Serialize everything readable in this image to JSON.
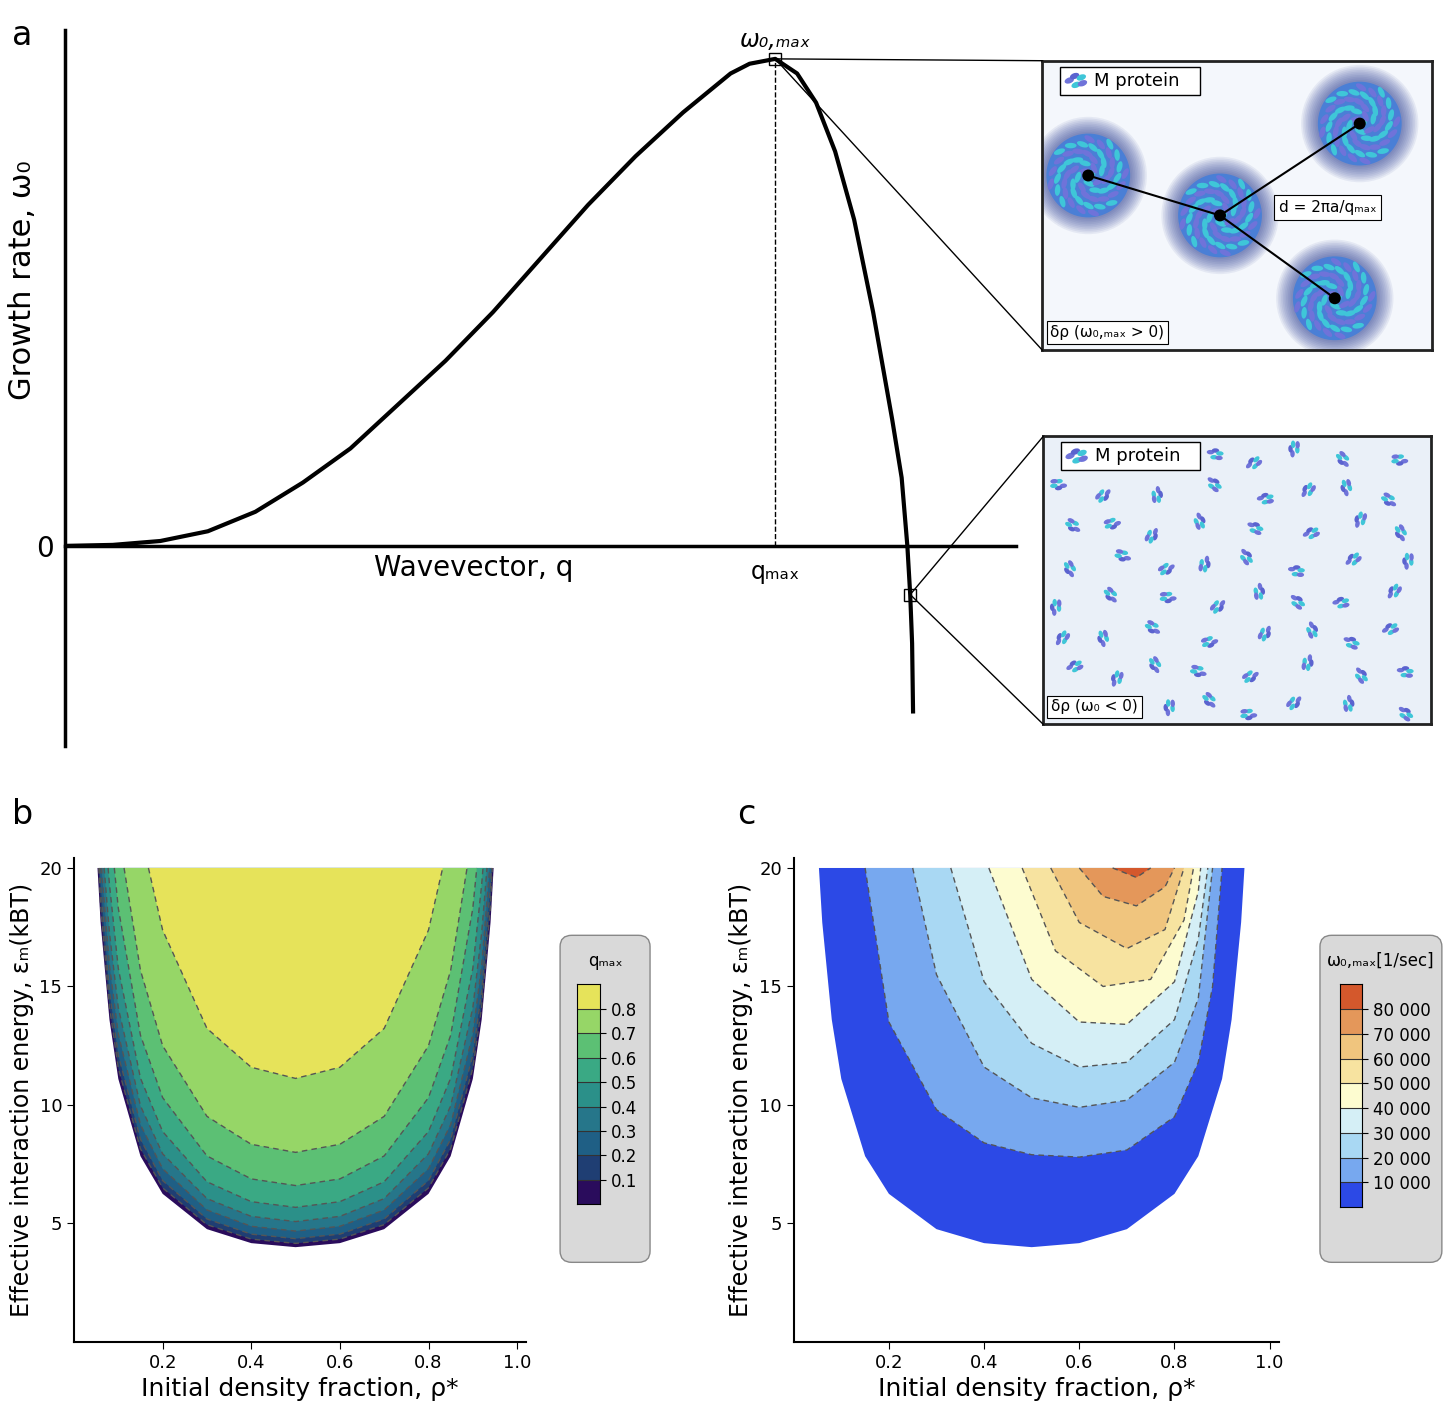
{
  "chart_data": [
    {
      "type": "line",
      "title": "a",
      "x_label": "Wavevector, q",
      "y_label": "Growth rate, ω₀",
      "peak_label": "ω₀,ₘₐₓ",
      "x": [
        0,
        0.05,
        0.1,
        0.15,
        0.2,
        0.25,
        0.3,
        0.35,
        0.4,
        0.45,
        0.5,
        0.55,
        0.6,
        0.65,
        0.7,
        0.72,
        0.747,
        0.77,
        0.79,
        0.81,
        0.83,
        0.85,
        0.87,
        0.88,
        0.886,
        0.889,
        0.891,
        0.892
      ],
      "values": [
        0,
        0.002,
        0.01,
        0.03,
        0.07,
        0.13,
        0.2,
        0.29,
        0.38,
        0.48,
        0.59,
        0.7,
        0.8,
        0.89,
        0.97,
        0.99,
        1.0,
        0.97,
        0.91,
        0.81,
        0.67,
        0.48,
        0.26,
        0.14,
        0.0,
        -0.1,
        -0.2,
        -0.34
      ],
      "color": "#000000",
      "xlim": [
        0,
        1
      ],
      "ylim": [
        -0.41,
        1.06
      ],
      "xticks": [
        {
          "value": 0.747,
          "label": "qₘₐₓ"
        }
      ],
      "yticks": [
        0
      ],
      "insets": [
        {
          "legend_text": "M protein",
          "distance_label": "d = 2πa/qₘₐₓ",
          "state_label": "δρ (ω₀,ₘₐₓ > 0)"
        },
        {
          "legend_text": "M protein",
          "state_label": "δρ (ω₀ < 0)"
        }
      ]
    },
    {
      "type": "contour",
      "title": "b",
      "x_label": "Initial density fraction, ρ*",
      "y_label": "Effective interaction energy, εₘ(kBT)",
      "xlim": [
        0,
        1.02
      ],
      "ylim": [
        0,
        20.4
      ],
      "xticks": [
        0.2,
        0.4,
        0.6,
        0.8,
        1.0
      ],
      "yticks": [
        5,
        10,
        15,
        20
      ],
      "colors": [
        "#2a0c5c",
        "#1f3e73",
        "#1f5f85",
        "#26768a",
        "#2b9089",
        "#3aa984",
        "#5cc074",
        "#96d667",
        "#e6e35a"
      ],
      "region_edge": {
        "rho": [
          0.053,
          0.06,
          0.08,
          0.1,
          0.15,
          0.2,
          0.3,
          0.4,
          0.5,
          0.6,
          0.7,
          0.8,
          0.85,
          0.9,
          0.92,
          0.94,
          0.947
        ],
        "epsilon": [
          20,
          17.7,
          13.6,
          11.1,
          7.84,
          6.25,
          4.76,
          4.17,
          4.0,
          4.17,
          4.76,
          6.25,
          7.84,
          11.1,
          13.6,
          17.7,
          20
        ]
      },
      "contours": [
        {
          "level": 0.1,
          "rho": [
            0.056,
            0.06,
            0.08,
            0.1,
            0.15,
            0.2,
            0.3,
            0.4,
            0.5,
            0.6,
            0.7,
            0.8,
            0.85,
            0.9,
            0.92,
            0.94,
            0.944
          ],
          "epsilon": [
            20,
            18.4,
            14.14,
            11.55,
            8.15,
            6.5,
            4.95,
            4.34,
            4.16,
            4.34,
            4.95,
            6.5,
            8.15,
            11.55,
            14.14,
            18.4,
            20
          ]
        },
        {
          "level": 0.2,
          "rho": [
            0.058,
            0.06,
            0.08,
            0.1,
            0.15,
            0.2,
            0.3,
            0.4,
            0.5,
            0.6,
            0.7,
            0.8,
            0.85,
            0.9,
            0.92,
            0.94,
            0.942
          ],
          "epsilon": [
            20,
            19.3,
            14.8,
            12.1,
            8.55,
            6.81,
            5.19,
            4.55,
            4.36,
            4.55,
            5.19,
            6.81,
            8.55,
            12.1,
            14.8,
            19.3,
            20
          ]
        },
        {
          "level": 0.3,
          "rho": [
            0.062,
            0.08,
            0.1,
            0.15,
            0.2,
            0.3,
            0.4,
            0.5,
            0.6,
            0.7,
            0.8,
            0.85,
            0.9,
            0.92,
            0.938
          ],
          "epsilon": [
            20,
            15.9,
            12.99,
            9.17,
            7.31,
            5.57,
            4.88,
            4.68,
            4.88,
            5.57,
            7.31,
            9.17,
            12.99,
            15.9,
            20
          ]
        },
        {
          "level": 0.4,
          "rho": [
            0.068,
            0.08,
            0.1,
            0.15,
            0.2,
            0.3,
            0.4,
            0.5,
            0.6,
            0.7,
            0.8,
            0.85,
            0.9,
            0.92,
            0.932
          ],
          "epsilon": [
            20,
            17.27,
            14.1,
            9.96,
            7.94,
            6.05,
            5.3,
            5.08,
            5.3,
            6.05,
            7.94,
            9.96,
            14.1,
            17.27,
            20
          ]
        },
        {
          "level": 0.5,
          "rho": [
            0.077,
            0.08,
            0.1,
            0.15,
            0.2,
            0.3,
            0.4,
            0.5,
            0.6,
            0.7,
            0.8,
            0.85,
            0.9,
            0.92,
            0.923
          ],
          "epsilon": [
            20,
            19.31,
            15.76,
            11.13,
            8.88,
            6.76,
            5.92,
            5.68,
            5.92,
            6.76,
            8.88,
            11.13,
            15.76,
            19.31,
            20
          ]
        },
        {
          "level": 0.6,
          "rho": [
            0.091,
            0.1,
            0.15,
            0.2,
            0.3,
            0.4,
            0.5,
            0.6,
            0.7,
            0.8,
            0.85,
            0.9,
            0.909
          ],
          "epsilon": [
            20,
            18.3,
            12.94,
            10.31,
            7.85,
            6.88,
            6.6,
            6.88,
            7.85,
            10.31,
            12.94,
            18.3,
            20
          ]
        },
        {
          "level": 0.7,
          "rho": [
            0.113,
            0.15,
            0.2,
            0.3,
            0.4,
            0.5,
            0.6,
            0.7,
            0.8,
            0.85,
            0.887
          ],
          "epsilon": [
            20,
            15.68,
            12.5,
            9.52,
            8.34,
            8.0,
            8.34,
            9.52,
            12.5,
            15.68,
            20
          ]
        },
        {
          "level": 0.8,
          "rho": [
            0.168,
            0.2,
            0.3,
            0.4,
            0.5,
            0.6,
            0.7,
            0.8,
            0.832
          ],
          "epsilon": [
            20,
            17.38,
            13.23,
            11.59,
            11.12,
            11.59,
            13.23,
            17.38,
            20
          ]
        }
      ],
      "colorbar": {
        "title": "qₘₐₓ",
        "range": [
          0,
          0.9
        ],
        "ticks": [
          0.1,
          0.2,
          0.3,
          0.4,
          0.5,
          0.6,
          0.7,
          0.8
        ]
      }
    },
    {
      "type": "contour",
      "title": "c",
      "x_label": "Initial density fraction, ρ*",
      "y_label": "Effective interaction energy, εₘ(kBT)",
      "xlim": [
        0,
        1.02
      ],
      "ylim": [
        0,
        20.4
      ],
      "xticks": [
        0.2,
        0.4,
        0.6,
        0.8,
        1.0
      ],
      "yticks": [
        5,
        10,
        15,
        20
      ],
      "colors": [
        "#2c49e6",
        "#77a8ef",
        "#a9d8f3",
        "#d5eff6",
        "#fdfcd0",
        "#f7e3a0",
        "#f0c57e",
        "#e4975a",
        "#d4582c"
      ],
      "region_edge": {
        "rho": [
          0.053,
          0.06,
          0.08,
          0.1,
          0.15,
          0.2,
          0.3,
          0.4,
          0.5,
          0.6,
          0.7,
          0.8,
          0.85,
          0.9,
          0.92,
          0.94,
          0.947
        ],
        "epsilon": [
          20,
          17.7,
          13.6,
          11.1,
          7.84,
          6.25,
          4.76,
          4.17,
          4.0,
          4.17,
          4.76,
          6.25,
          7.84,
          11.1,
          13.6,
          17.7,
          20
        ]
      },
      "contours": [
        {
          "level": 10000,
          "rho": [
            0.15,
            0.2,
            0.3,
            0.4,
            0.5,
            0.6,
            0.7,
            0.8,
            0.85,
            0.88,
            0.9
          ],
          "epsilon": [
            20,
            13.5,
            9.8,
            8.4,
            7.9,
            7.8,
            8.1,
            9.5,
            11.8,
            15,
            20
          ]
        },
        {
          "level": 20000,
          "rho": [
            0.25,
            0.3,
            0.4,
            0.5,
            0.6,
            0.7,
            0.8,
            0.85,
            0.88
          ],
          "epsilon": [
            20,
            15.5,
            11.6,
            10.3,
            9.9,
            10.2,
            11.8,
            14.5,
            20
          ]
        },
        {
          "level": 30000,
          "rho": [
            0.33,
            0.4,
            0.5,
            0.6,
            0.7,
            0.8,
            0.85,
            0.87
          ],
          "epsilon": [
            20,
            15.2,
            12.6,
            11.6,
            11.8,
            13.6,
            17,
            20
          ]
        },
        {
          "level": 40000,
          "rho": [
            0.41,
            0.5,
            0.6,
            0.7,
            0.8,
            0.85,
            0.855
          ],
          "epsilon": [
            20,
            15.3,
            13.5,
            13.4,
            15.2,
            19,
            20
          ]
        },
        {
          "level": 50000,
          "rho": [
            0.48,
            0.55,
            0.65,
            0.75,
            0.82,
            0.84
          ],
          "epsilon": [
            20,
            16.5,
            15.0,
            15.3,
            17.8,
            20
          ]
        },
        {
          "level": 60000,
          "rho": [
            0.54,
            0.6,
            0.7,
            0.78,
            0.82
          ],
          "epsilon": [
            20,
            17.7,
            16.6,
            17.4,
            20
          ]
        },
        {
          "level": 70000,
          "rho": [
            0.6,
            0.65,
            0.72,
            0.78,
            0.8
          ],
          "epsilon": [
            20,
            18.8,
            18.4,
            19.2,
            20
          ]
        },
        {
          "level": 80000,
          "rho": [
            0.67,
            0.72,
            0.75
          ],
          "epsilon": [
            20,
            19.6,
            20
          ]
        }
      ],
      "colorbar": {
        "title": "ω₀,ₘₐₓ[1/sec]",
        "range": [
          0,
          90000
        ],
        "ticks": [
          {
            "value": 10000,
            "label": "10 000"
          },
          {
            "value": 20000,
            "label": "20 000"
          },
          {
            "value": 30000,
            "label": "30 000"
          },
          {
            "value": 40000,
            "label": "40 000"
          },
          {
            "value": 50000,
            "label": "50 000"
          },
          {
            "value": 60000,
            "label": "60 000"
          },
          {
            "value": 70000,
            "label": "70 000"
          },
          {
            "value": 80000,
            "label": "80 000"
          }
        ]
      }
    }
  ]
}
